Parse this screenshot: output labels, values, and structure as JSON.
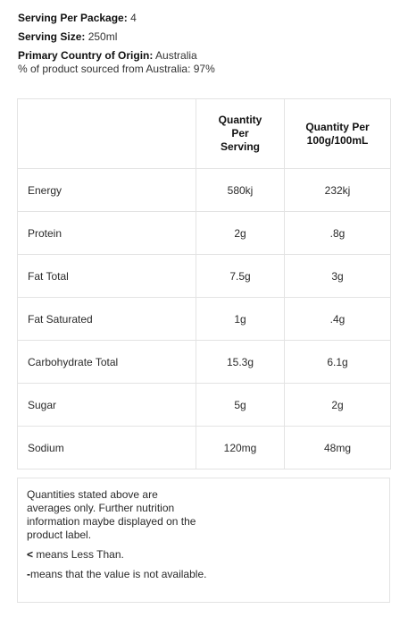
{
  "info": {
    "serving_per_package_label": "Serving Per Package:",
    "serving_per_package_value": "4",
    "serving_size_label": "Serving Size:",
    "serving_size_value": "250ml",
    "origin_label": "Primary Country of Origin:",
    "origin_value": "Australia",
    "sourced_text": "% of product sourced from Australia: 97%"
  },
  "table": {
    "header_blank": "",
    "col_per_serving": "Quantity Per Serving",
    "col_per_100": "Quantity Per 100g/100mL",
    "rows": [
      {
        "name": "Energy",
        "per_serving": "580kj",
        "per_100": "232kj"
      },
      {
        "name": "Protein",
        "per_serving": "2g",
        "per_100": ".8g"
      },
      {
        "name": "Fat Total",
        "per_serving": "7.5g",
        "per_100": "3g"
      },
      {
        "name": "Fat Saturated",
        "per_serving": "1g",
        "per_100": ".4g"
      },
      {
        "name": "Carbohydrate Total",
        "per_serving": "15.3g",
        "per_100": "6.1g"
      },
      {
        "name": "Sugar",
        "per_serving": "5g",
        "per_100": "2g"
      },
      {
        "name": "Sodium",
        "per_serving": "120mg",
        "per_100": "48mg"
      }
    ]
  },
  "notes": {
    "averages": "Quantities stated above are averages only. Further nutrition information maybe displayed on the product label.",
    "less_than_symbol": "<",
    "less_than_text": "means Less Than.",
    "not_available_symbol": "-",
    "not_available_text": "means that the value is not available."
  }
}
